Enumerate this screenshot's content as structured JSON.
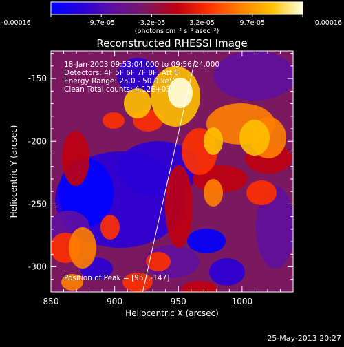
{
  "colorbar": {
    "ticks": [
      "-0.00016",
      "-9.7e-05",
      "-3.2e-05",
      "3.2e-05",
      "9.7e-05",
      "0.00016"
    ],
    "unit_label": "(photons cm⁻² s⁻¹ asec⁻²)",
    "colormap": [
      "#0000ff",
      "#2a00d8",
      "#6010a0",
      "#7a1860",
      "#c00010",
      "#ff3000",
      "#ff8000",
      "#ffc000",
      "#ffffe0"
    ]
  },
  "overlay": {
    "lines": [
      "18-Jan-2003 09:53:04.000 to 09:56:24.000",
      "Detectors: 4F 5F 6F 7F 8F, Att 0",
      "Energy Range: 25.0 - 50.0 keV",
      "Clean    Total counts: 4.12E+03"
    ],
    "peak_label": "Position of Peak = [957,-147]"
  },
  "footer": {
    "date": "25-May-2013 20:27"
  },
  "chart_data": {
    "type": "heatmap",
    "title": "Reconstructed RHESSI Image",
    "xlabel": "Heliocentric X (arcsec)",
    "ylabel": "Heliocentric Y (arcsec)",
    "xlim": [
      850,
      1040
    ],
    "ylim": [
      -320,
      -128
    ],
    "x_ticks": [
      "850",
      "900",
      "950",
      "1000"
    ],
    "y_ticks": [
      "-150",
      "-200",
      "-250",
      "-300"
    ],
    "x_tick_values": [
      850,
      900,
      950,
      1000
    ],
    "y_tick_values": [
      -150,
      -200,
      -250,
      -300
    ],
    "value_range": [
      -0.00016,
      0.00016
    ],
    "peak": {
      "x": 957,
      "y": -147
    },
    "limb_line": [
      [
        922,
        -320
      ],
      [
        963,
        -135
      ]
    ],
    "grid": false,
    "legend": "none"
  }
}
